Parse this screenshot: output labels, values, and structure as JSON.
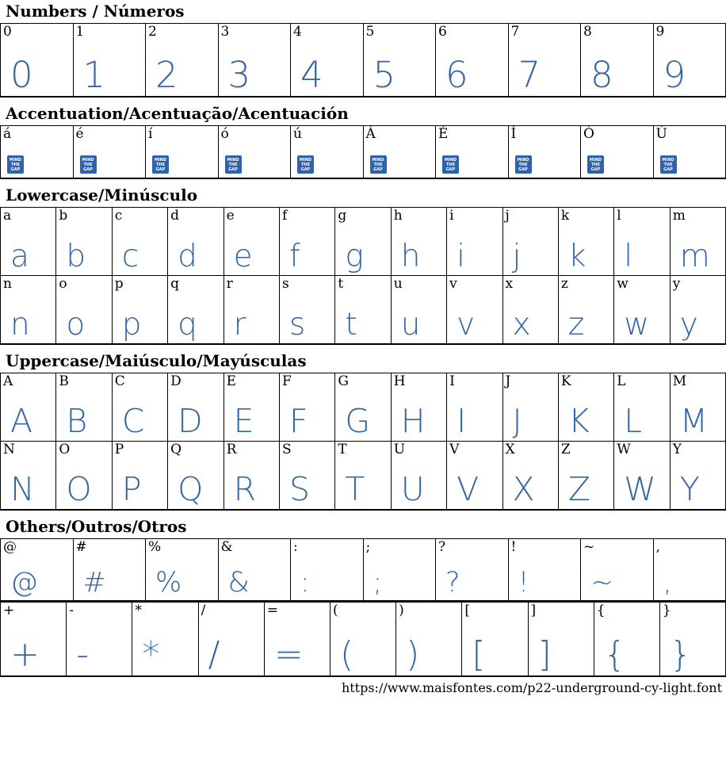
{
  "colors": {
    "sample_blue": "#3465a4",
    "border_black": "#000000",
    "placeholder_bg": "#2f62ae"
  },
  "sections": [
    {
      "id": "numbers",
      "title": "Numbers / Números",
      "rows": [
        [
          "0",
          "1",
          "2",
          "3",
          "4",
          "5",
          "6",
          "7",
          "8",
          "9"
        ]
      ]
    },
    {
      "id": "accent",
      "title": "Accentuation/Acentuação/Acentuación",
      "placeholder_icon": "mind-the-gap",
      "rows": [
        [
          "á",
          "é",
          "í",
          "ó",
          "ú",
          "Á",
          "É",
          "Í",
          "Ó",
          "Ú"
        ]
      ]
    },
    {
      "id": "lowercase",
      "title": "Lowercase/Minúsculo",
      "rows": [
        [
          "a",
          "b",
          "c",
          "d",
          "e",
          "f",
          "g",
          "h",
          "i",
          "j",
          "k",
          "l",
          "m"
        ],
        [
          "n",
          "o",
          "p",
          "q",
          "r",
          "s",
          "t",
          "u",
          "v",
          "x",
          "z",
          "w",
          "y"
        ]
      ]
    },
    {
      "id": "uppercase",
      "title": "Uppercase/Maiúsculo/Mayúsculas",
      "rows": [
        [
          "A",
          "B",
          "C",
          "D",
          "E",
          "F",
          "G",
          "H",
          "I",
          "J",
          "K",
          "L",
          "M"
        ],
        [
          "N",
          "O",
          "P",
          "Q",
          "R",
          "S",
          "T",
          "U",
          "V",
          "X",
          "Z",
          "W",
          "Y"
        ]
      ]
    },
    {
      "id": "others",
      "title": "Others/Outros/Otros",
      "split_rows": true,
      "rows": [
        [
          "@",
          "#",
          "%",
          "&",
          ":",
          ";",
          "?",
          "!",
          "~",
          ","
        ],
        [
          "+",
          "-",
          "*",
          "/",
          "=",
          "(",
          ")",
          "[",
          "]",
          "{",
          "}"
        ]
      ]
    }
  ],
  "mind_the_gap_icon": {
    "lines": [
      "MIND",
      "THE",
      "GAP"
    ]
  },
  "footer": {
    "url": "https://www.maisfontes.com/p22-underground-cy-light.font"
  }
}
